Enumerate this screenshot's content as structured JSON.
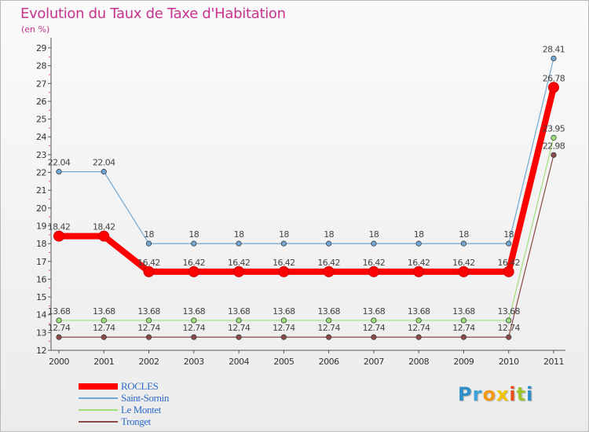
{
  "title": "Evolution du Taux de Taxe d'Habitation",
  "unit_label": "(en %)",
  "logo": {
    "text": "Proxiti",
    "letters": [
      "P",
      "r",
      "o",
      "x",
      "i",
      "t",
      "i"
    ],
    "colors": [
      "#2d8ec8",
      "#3aa2d6",
      "#f29a16",
      "#f2c400",
      "#e94e1b",
      "#9dc32f",
      "#2d8ec8"
    ]
  },
  "chart_data": {
    "type": "line",
    "title": "Evolution du Taux de Taxe d'Habitation",
    "ylabel": "(en %)",
    "xlabel": "",
    "x": [
      "2000",
      "2001",
      "2002",
      "2003",
      "2004",
      "2005",
      "2006",
      "2007",
      "2008",
      "2009",
      "2010",
      "2011"
    ],
    "ylim": [
      12,
      29
    ],
    "yticks": [
      "12",
      "13",
      "14",
      "15",
      "16",
      "17",
      "18",
      "19",
      "20",
      "21",
      "22",
      "23",
      "24",
      "25",
      "26",
      "27",
      "28",
      "29"
    ],
    "grid": false,
    "series": [
      {
        "name": "ROCLES",
        "color": "#ff0000",
        "emphasis": true,
        "values": [
          18.42,
          18.42,
          16.42,
          16.42,
          16.42,
          16.42,
          16.42,
          16.42,
          16.42,
          16.42,
          16.42,
          26.78
        ],
        "labels": [
          "18.42",
          "18.42",
          "16.42",
          "16.42",
          "16.42",
          "16.42",
          "16.42",
          "16.42",
          "16.42",
          "16.42",
          "16.42",
          "26.78"
        ]
      },
      {
        "name": "Saint-Sornin",
        "color": "#6fa8d6",
        "values": [
          22.04,
          22.04,
          18,
          18,
          18,
          18,
          18,
          18,
          18,
          18,
          18,
          28.41
        ],
        "labels": [
          "22.04",
          "22.04",
          "18",
          "18",
          "18",
          "18",
          "18",
          "18",
          "18",
          "18",
          "18",
          "28.41"
        ]
      },
      {
        "name": "Le Montet",
        "color": "#9ee07a",
        "values": [
          13.68,
          13.68,
          13.68,
          13.68,
          13.68,
          13.68,
          13.68,
          13.68,
          13.68,
          13.68,
          13.68,
          23.95
        ],
        "labels": [
          "13.68",
          "13.68",
          "13.68",
          "13.68",
          "13.68",
          "13.68",
          "13.68",
          "13.68",
          "13.68",
          "13.68",
          "13.68",
          "23.95"
        ]
      },
      {
        "name": "Tronget",
        "color": "#8b4a4a",
        "values": [
          12.74,
          12.74,
          12.74,
          12.74,
          12.74,
          12.74,
          12.74,
          12.74,
          12.74,
          12.74,
          12.74,
          22.98
        ],
        "labels": [
          "12.74",
          "12.74",
          "12.74",
          "12.74",
          "12.74",
          "12.74",
          "12.74",
          "12.74",
          "12.74",
          "12.74",
          "12.74",
          "22.98"
        ]
      }
    ]
  }
}
